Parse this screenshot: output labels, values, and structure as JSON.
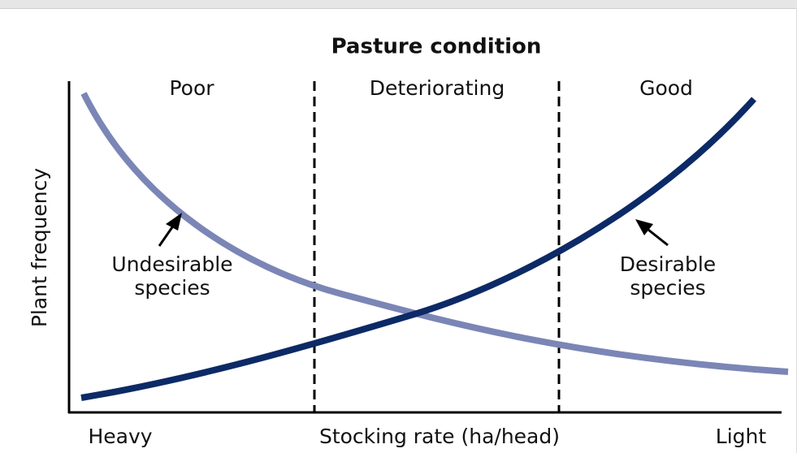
{
  "title": "Pasture condition",
  "zones": [
    "Poor",
    "Deteriorating",
    "Good"
  ],
  "y_axis_label": "Plant frequency",
  "x_axis_label": "Stocking rate (ha/head)",
  "x_axis_ends": [
    "Heavy",
    "Light"
  ],
  "annotations": [
    {
      "lines": [
        "Undesirable",
        "species"
      ]
    },
    {
      "lines": [
        "Desirable",
        "species"
      ]
    }
  ]
}
